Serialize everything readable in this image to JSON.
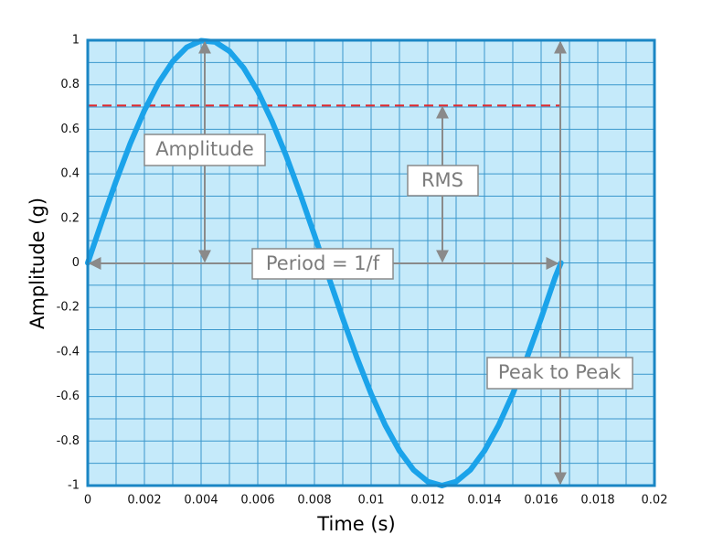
{
  "chart_data": {
    "type": "line",
    "x_label": "Time (s)",
    "y_label": "Amplitude (g)",
    "x": [
      0,
      0.0005,
      0.001,
      0.0015,
      0.002,
      0.0025,
      0.003,
      0.0035,
      0.004,
      0.0045,
      0.005,
      0.0055,
      0.006,
      0.0065,
      0.007,
      0.0075,
      0.008,
      0.0085,
      0.009,
      0.0095,
      0.01,
      0.0105,
      0.011,
      0.0115,
      0.012,
      0.0125,
      0.013,
      0.0135,
      0.014,
      0.0145,
      0.015,
      0.0155,
      0.016,
      0.0165,
      0.0167
    ],
    "series": [
      {
        "color": "#1ba3ea",
        "values": [
          0,
          0.187,
          0.368,
          0.536,
          0.685,
          0.809,
          0.905,
          0.969,
          0.998,
          0.992,
          0.951,
          0.876,
          0.771,
          0.637,
          0.482,
          0.309,
          0.125,
          -0.063,
          -0.249,
          -0.426,
          -0.588,
          -0.729,
          -0.844,
          -0.93,
          -0.982,
          -1,
          -0.982,
          -0.93,
          -0.844,
          -0.729,
          -0.588,
          -0.426,
          -0.249,
          -0.063,
          0
        ]
      }
    ],
    "xlim": [
      0,
      0.02
    ],
    "ylim": [
      -1,
      1
    ],
    "xticks": [
      0,
      0.002,
      0.004,
      0.006,
      0.008,
      0.01,
      0.012,
      0.014,
      0.016,
      0.018,
      0.02
    ],
    "yticks": [
      -1,
      -0.8,
      -0.6,
      -0.4,
      -0.2,
      0,
      0.2,
      0.4,
      0.6,
      0.8,
      1
    ],
    "x_grid": [
      0.001,
      0.003,
      0.005,
      0.007,
      0.009,
      0.011,
      0.013,
      0.015,
      0.017,
      0.019
    ],
    "y_grid": [
      -0.9,
      -0.7,
      -0.5,
      -0.3,
      -0.1,
      0.1,
      0.3,
      0.5,
      0.7,
      0.9
    ],
    "grid": true,
    "reference_line": {
      "value": 0.707,
      "x_end": 0.0167,
      "color": "#e0282c"
    },
    "annotations": [
      "Amplitude",
      "RMS",
      "Period = 1/f",
      "Peak to Peak"
    ]
  }
}
